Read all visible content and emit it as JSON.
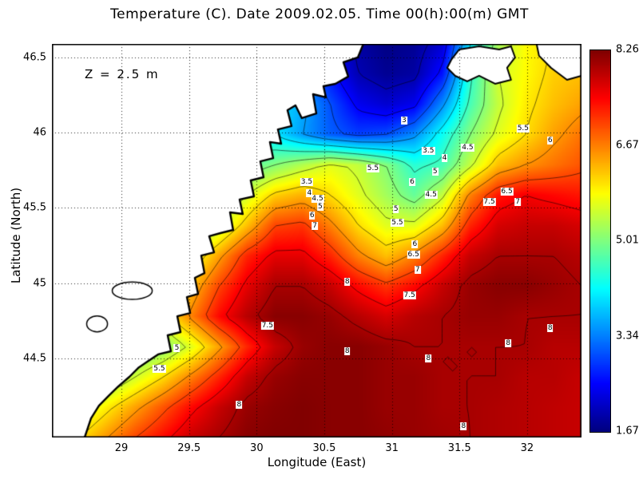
{
  "chart_data": {
    "type": "heatmap",
    "subtype": "filled-contour-map",
    "title": "Temperature (C). Date 2009.02.05. Time 00(h):00(m) GMT",
    "annotation": "Z = 2.5 m",
    "xlabel": "Longitude (East)",
    "ylabel": "Latitude (North)",
    "x_ticks": [
      "29",
      "29.5",
      "30",
      "30.5",
      "31",
      "31.5",
      "32"
    ],
    "x_tick_values": [
      29,
      29.5,
      30,
      30.5,
      31,
      31.5,
      32
    ],
    "y_ticks": [
      "44.5",
      "45",
      "45.5",
      "46",
      "46.5"
    ],
    "y_tick_values": [
      44.5,
      45,
      45.5,
      46,
      46.5
    ],
    "xlim": [
      28.486,
      32.402
    ],
    "ylim": [
      43.975,
      46.59
    ],
    "value_range": [
      1.67,
      8.26
    ],
    "colormap": "jet",
    "colorbar_ticks": [
      "8.26",
      "6.67",
      "5.01",
      "3.34",
      "1.67"
    ],
    "contour_levels": [
      2,
      2.5,
      3,
      3.5,
      4,
      4.5,
      5,
      5.5,
      6,
      6.5,
      7,
      7.5,
      8
    ],
    "contour_labels": [
      {
        "v": "3",
        "lon": 31.09,
        "lat": 46.08
      },
      {
        "v": "5.5",
        "lon": 31.97,
        "lat": 46.03
      },
      {
        "v": "6",
        "lon": 32.17,
        "lat": 45.95
      },
      {
        "v": "3.5",
        "lon": 31.27,
        "lat": 45.88
      },
      {
        "v": "4",
        "lon": 31.39,
        "lat": 45.83
      },
      {
        "v": "4.5",
        "lon": 31.56,
        "lat": 45.9
      },
      {
        "v": "3.5",
        "lon": 30.37,
        "lat": 45.67
      },
      {
        "v": "4",
        "lon": 30.39,
        "lat": 45.6
      },
      {
        "v": "4.5",
        "lon": 30.45,
        "lat": 45.56
      },
      {
        "v": "5",
        "lon": 30.47,
        "lat": 45.51
      },
      {
        "v": "5.5",
        "lon": 30.86,
        "lat": 45.76
      },
      {
        "v": "5",
        "lon": 31.32,
        "lat": 45.74
      },
      {
        "v": "6",
        "lon": 31.15,
        "lat": 45.67
      },
      {
        "v": "4.5",
        "lon": 31.29,
        "lat": 45.59
      },
      {
        "v": "6.5",
        "lon": 31.85,
        "lat": 45.61
      },
      {
        "v": "7.5",
        "lon": 31.72,
        "lat": 45.54
      },
      {
        "v": "7",
        "lon": 31.93,
        "lat": 45.54
      },
      {
        "v": "6",
        "lon": 30.41,
        "lat": 45.45
      },
      {
        "v": "7",
        "lon": 30.43,
        "lat": 45.38
      },
      {
        "v": "5",
        "lon": 31.03,
        "lat": 45.49
      },
      {
        "v": "5.5",
        "lon": 31.04,
        "lat": 45.4
      },
      {
        "v": "6",
        "lon": 31.17,
        "lat": 45.26
      },
      {
        "v": "6.5",
        "lon": 31.16,
        "lat": 45.19
      },
      {
        "v": "7",
        "lon": 31.19,
        "lat": 45.09
      },
      {
        "v": "8",
        "lon": 30.67,
        "lat": 45.01
      },
      {
        "v": "7.5",
        "lon": 31.13,
        "lat": 44.92
      },
      {
        "v": "7.5",
        "lon": 30.08,
        "lat": 44.72
      },
      {
        "v": "5",
        "lon": 29.41,
        "lat": 44.57
      },
      {
        "v": "5.5",
        "lon": 29.28,
        "lat": 44.43
      },
      {
        "v": "8",
        "lon": 30.67,
        "lat": 44.55
      },
      {
        "v": "8",
        "lon": 31.27,
        "lat": 44.5
      },
      {
        "v": "8",
        "lon": 31.86,
        "lat": 44.6
      },
      {
        "v": "8",
        "lon": 32.17,
        "lat": 44.7
      },
      {
        "v": "8",
        "lon": 29.87,
        "lat": 44.19
      },
      {
        "v": "8",
        "lon": 31.53,
        "lat": 44.05
      }
    ],
    "grid": {
      "lon_min": 28.486,
      "lon_max": 32.402,
      "lat_min": 43.975,
      "lat_max": 46.59,
      "temperature": [
        [
          4.0,
          4.0,
          4.0,
          4.0,
          4.0,
          4.0,
          4.0,
          4.0,
          3.6,
          3.2,
          2.4,
          1.9,
          1.7,
          1.8,
          2.2,
          4.0,
          5.2,
          5.8,
          6.0,
          6.0
        ],
        [
          4.1,
          4.1,
          4.1,
          4.1,
          4.1,
          4.1,
          4.1,
          4.0,
          3.8,
          3.4,
          2.6,
          2.0,
          1.8,
          1.9,
          2.6,
          4.4,
          5.5,
          5.8,
          6.1,
          6.2
        ],
        [
          4.2,
          4.2,
          4.2,
          4.2,
          4.2,
          4.2,
          4.2,
          4.1,
          4.0,
          3.6,
          3.0,
          2.4,
          2.2,
          2.4,
          3.4,
          4.6,
          5.4,
          5.9,
          6.2,
          6.4
        ],
        [
          4.3,
          4.3,
          4.3,
          4.3,
          4.3,
          4.3,
          4.3,
          4.2,
          4.0,
          3.5,
          3.1,
          2.9,
          3.0,
          3.4,
          4.2,
          5.0,
          5.6,
          6.0,
          6.4,
          6.7
        ],
        [
          4.4,
          4.4,
          4.4,
          4.4,
          4.4,
          4.4,
          4.5,
          4.7,
          5.0,
          5.3,
          5.6,
          5.4,
          5.0,
          4.4,
          4.6,
          5.4,
          6.2,
          6.5,
          6.7,
          6.9
        ],
        [
          4.6,
          4.6,
          4.6,
          4.6,
          4.6,
          4.5,
          4.9,
          5.5,
          6.1,
          6.3,
          6.0,
          5.6,
          5.2,
          4.8,
          5.4,
          6.6,
          7.3,
          7.5,
          7.4,
          7.3
        ],
        [
          4.8,
          4.8,
          4.8,
          4.8,
          4.8,
          4.8,
          5.4,
          6.2,
          7.0,
          7.1,
          6.6,
          6.0,
          5.6,
          5.6,
          6.2,
          7.2,
          7.7,
          7.8,
          7.8,
          7.7
        ],
        [
          5.0,
          5.0,
          5.0,
          5.0,
          5.0,
          5.6,
          6.4,
          7.2,
          7.6,
          7.6,
          7.2,
          6.6,
          6.2,
          6.6,
          7.2,
          7.8,
          8.0,
          8.0,
          8.0,
          7.9
        ],
        [
          5.2,
          5.2,
          5.2,
          5.2,
          5.4,
          6.2,
          7.0,
          7.6,
          8.0,
          8.0,
          7.8,
          7.4,
          7.1,
          7.4,
          7.8,
          8.1,
          8.2,
          8.2,
          8.1,
          8.0
        ],
        [
          5.0,
          5.0,
          5.0,
          5.0,
          5.8,
          6.6,
          7.4,
          7.9,
          8.2,
          8.2,
          8.1,
          7.9,
          7.7,
          7.9,
          8.0,
          8.1,
          8.1,
          8.0,
          8.0,
          8.0
        ],
        [
          4.6,
          4.6,
          4.4,
          4.7,
          5.0,
          5.6,
          6.4,
          7.2,
          7.8,
          8.1,
          8.2,
          8.2,
          8.1,
          8.0,
          8.0,
          8.0,
          8.0,
          8.0,
          7.9,
          7.9
        ],
        [
          4.6,
          4.6,
          5.0,
          5.5,
          6.0,
          6.6,
          7.2,
          7.8,
          8.1,
          8.2,
          8.2,
          8.2,
          8.1,
          8.1,
          8.0,
          8.0,
          8.0,
          7.9,
          7.9,
          7.8
        ],
        [
          5.0,
          5.4,
          5.9,
          6.4,
          6.9,
          7.4,
          7.8,
          8.1,
          8.2,
          8.25,
          8.2,
          8.2,
          8.1,
          8.1,
          8.0,
          8.0,
          7.95,
          7.9,
          7.85,
          7.8
        ],
        [
          5.6,
          6.0,
          6.5,
          7.0,
          7.4,
          7.8,
          8.0,
          8.2,
          8.25,
          8.25,
          8.2,
          8.2,
          8.15,
          8.1,
          8.05,
          8.0,
          7.95,
          7.9,
          7.85,
          7.8
        ]
      ]
    },
    "coastline": [
      [
        30.789,
        46.59
      ],
      [
        30.748,
        46.5
      ],
      [
        30.642,
        46.468
      ],
      [
        30.677,
        46.373
      ],
      [
        30.582,
        46.325
      ],
      [
        30.494,
        46.309
      ],
      [
        30.512,
        46.235
      ],
      [
        30.417,
        46.256
      ],
      [
        30.441,
        46.128
      ],
      [
        30.334,
        46.097
      ],
      [
        30.287,
        46.182
      ],
      [
        30.228,
        46.15
      ],
      [
        30.258,
        46.044
      ],
      [
        30.157,
        46.022
      ],
      [
        30.181,
        45.927
      ],
      [
        30.098,
        45.938
      ],
      [
        30.122,
        45.831
      ],
      [
        30.027,
        45.81
      ],
      [
        30.051,
        45.704
      ],
      [
        29.956,
        45.683
      ],
      [
        29.98,
        45.577
      ],
      [
        29.874,
        45.556
      ],
      [
        29.897,
        45.46
      ],
      [
        29.803,
        45.471
      ],
      [
        29.826,
        45.354
      ],
      [
        29.732,
        45.333
      ],
      [
        29.649,
        45.312
      ],
      [
        29.685,
        45.205
      ],
      [
        29.59,
        45.184
      ],
      [
        29.614,
        45.067
      ],
      [
        29.543,
        45.036
      ],
      [
        29.567,
        44.929
      ],
      [
        29.484,
        44.908
      ],
      [
        29.508,
        44.802
      ],
      [
        29.413,
        44.781
      ],
      [
        29.437,
        44.675
      ],
      [
        29.342,
        44.654
      ],
      [
        29.366,
        44.548
      ],
      [
        29.271,
        44.527
      ],
      [
        29.2,
        44.484
      ],
      [
        29.129,
        44.441
      ],
      [
        29.059,
        44.378
      ],
      [
        28.976,
        44.314
      ],
      [
        28.905,
        44.251
      ],
      [
        28.834,
        44.187
      ],
      [
        28.775,
        44.102
      ],
      [
        28.728,
        43.975
      ]
    ],
    "islands": [
      [
        [
          31.439,
          46.484
        ],
        [
          31.498,
          46.553
        ],
        [
          31.645,
          46.574
        ],
        [
          31.793,
          46.553
        ],
        [
          31.881,
          46.574
        ],
        [
          31.911,
          46.5
        ],
        [
          31.852,
          46.431
        ],
        [
          31.881,
          46.351
        ],
        [
          31.763,
          46.325
        ],
        [
          31.645,
          46.378
        ],
        [
          31.557,
          46.341
        ],
        [
          31.468,
          46.378
        ],
        [
          31.409,
          46.431
        ]
      ],
      [
        [
          32.07,
          46.59
        ],
        [
          32.401,
          46.59
        ],
        [
          32.401,
          46.378
        ],
        [
          32.295,
          46.351
        ],
        [
          32.177,
          46.431
        ],
        [
          32.088,
          46.511
        ]
      ]
    ],
    "lakes": [
      {
        "lon": 29.08,
        "lat": 44.95,
        "rx": 0.148,
        "ry": 0.058
      },
      {
        "lon": 28.82,
        "lat": 44.73,
        "rx": 0.077,
        "ry": 0.053
      }
    ]
  }
}
